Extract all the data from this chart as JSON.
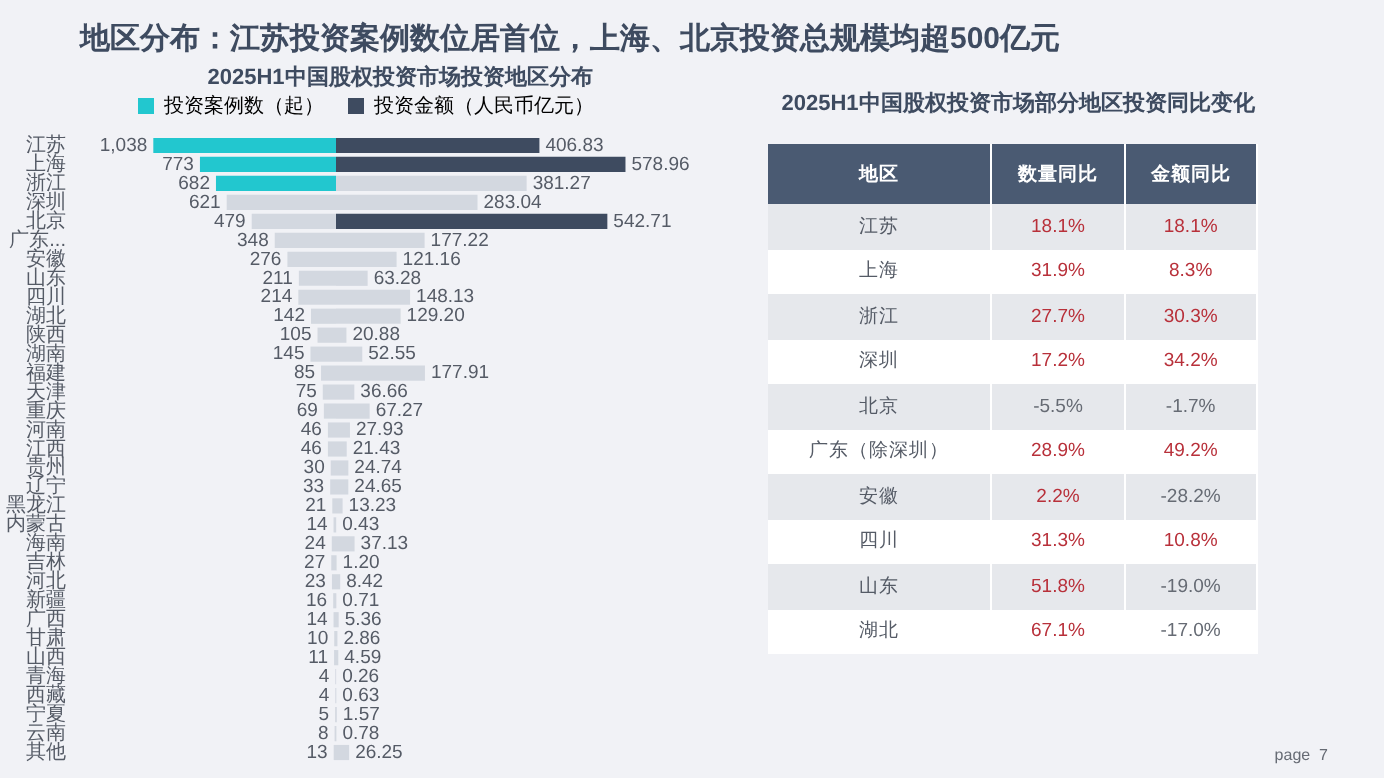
{
  "chart_data": [
    {
      "type": "bar",
      "orientation": "horizontal",
      "title": "地区分布：江苏投资案例数位居首位，上海、北京投资总规模均超500亿元",
      "subtitle": "2025H1中国股权投资市场投资地区分布",
      "legend": "top",
      "tick_labels": "y",
      "categories": [
        "江苏",
        "上海",
        "浙江",
        "深圳",
        "北京",
        "广东...",
        "安徽",
        "山东",
        "四川",
        "湖北",
        "陕西",
        "湖南",
        "福建",
        "天津",
        "重庆",
        "河南",
        "江西",
        "贵州",
        "辽宁",
        "黑龙江",
        "内蒙古",
        "海南",
        "吉林",
        "河北",
        "新疆",
        "广西",
        "甘肃",
        "山西",
        "青海",
        "西藏",
        "宁夏",
        "云南",
        "其他"
      ],
      "series": [
        {
          "name": "投资案例数（起）",
          "values": [
            1038,
            773,
            682,
            621,
            479,
            348,
            276,
            211,
            214,
            142,
            105,
            145,
            85,
            75,
            69,
            46,
            46,
            30,
            33,
            21,
            14,
            24,
            27,
            23,
            16,
            14,
            10,
            11,
            4,
            4,
            5,
            8,
            13
          ],
          "value_labels": [
            "1,038",
            "773",
            "682",
            "621",
            "479",
            "348",
            "276",
            "211",
            "214",
            "142",
            "105",
            "145",
            "85",
            "75",
            "69",
            "46",
            "46",
            "30",
            "33",
            "21",
            "14",
            "24",
            "27",
            "23",
            "16",
            "14",
            "10",
            "11",
            "4",
            "4",
            "5",
            "8",
            "13"
          ],
          "colors": [
            "#22c7cf",
            "#22c7cf",
            "#22c7cf",
            "#d3d8e0",
            "#d3d8e0",
            "#d3d8e0",
            "#d3d8e0",
            "#d3d8e0",
            "#d3d8e0",
            "#d3d8e0",
            "#d3d8e0",
            "#d3d8e0",
            "#d3d8e0",
            "#d3d8e0",
            "#d3d8e0",
            "#d3d8e0",
            "#d3d8e0",
            "#d3d8e0",
            "#d3d8e0",
            "#d3d8e0",
            "#d3d8e0",
            "#d3d8e0",
            "#d3d8e0",
            "#d3d8e0",
            "#d3d8e0",
            "#d3d8e0",
            "#d3d8e0",
            "#d3d8e0",
            "#d3d8e0",
            "#d3d8e0",
            "#d3d8e0",
            "#d3d8e0",
            "#d3d8e0"
          ]
        }
      ]
    },
    {
      "type": "bar",
      "orientation": "horizontal",
      "legend": "top",
      "tick_labels": false,
      "categories": [
        null,
        null,
        null,
        null,
        null,
        null,
        null,
        null,
        null,
        null,
        null,
        null,
        null,
        null,
        null,
        null,
        null,
        null,
        null,
        null,
        null,
        null,
        null,
        null,
        null,
        null,
        null,
        null,
        null,
        null,
        null,
        null,
        null
      ],
      "series": [
        {
          "name": "投资金额（人民币亿元）",
          "values": [
            406.83,
            578.96,
            381.27,
            283.04,
            542.71,
            177.22,
            121.16,
            63.28,
            148.13,
            129.2,
            20.88,
            52.55,
            177.91,
            36.66,
            67.27,
            27.93,
            21.43,
            24.74,
            24.65,
            13.23,
            0.43,
            37.13,
            1.2,
            8.42,
            0.71,
            5.36,
            2.86,
            4.59,
            0.26,
            0.63,
            1.57,
            0.78,
            26.25
          ],
          "value_labels": [
            "406.83",
            "578.96",
            "381.27",
            "283.04",
            "542.71",
            "177.22",
            "121.16",
            "63.28",
            "148.13",
            "129.20",
            "20.88",
            "52.55",
            "177.91",
            "36.66",
            "67.27",
            "27.93",
            "21.43",
            "24.74",
            "24.65",
            "13.23",
            "0.43",
            "37.13",
            "1.20",
            "8.42",
            "0.71",
            "5.36",
            "2.86",
            "4.59",
            "0.26",
            "0.63",
            "1.57",
            "0.78",
            "26.25"
          ],
          "colors": [
            "#3e4b60",
            "#3e4b60",
            "#d3d8e0",
            "#d3d8e0",
            "#3e4b60",
            "#d3d8e0",
            "#d3d8e0",
            "#d3d8e0",
            "#d3d8e0",
            "#d3d8e0",
            "#d3d8e0",
            "#d3d8e0",
            "#d3d8e0",
            "#d3d8e0",
            "#d3d8e0",
            "#d3d8e0",
            "#d3d8e0",
            "#d3d8e0",
            "#d3d8e0",
            "#d3d8e0",
            "#d3d8e0",
            "#d3d8e0",
            "#d3d8e0",
            "#d3d8e0",
            "#d3d8e0",
            "#d3d8e0",
            "#d3d8e0",
            "#d3d8e0",
            "#d3d8e0",
            "#d3d8e0",
            "#d3d8e0",
            "#d3d8e0",
            "#d3d8e0"
          ]
        }
      ]
    },
    {
      "type": "heatmap",
      "title": "2025H1中国股权投资市场部分地区投资同比变化",
      "ylabel": "地区",
      "categories": [
        "数量同比",
        "金额同比"
      ],
      "y_categories": [
        "江苏",
        "上海",
        "浙江",
        "深圳",
        "北京",
        "广东（除深圳）",
        "安徽",
        "四川",
        "山东",
        "湖北"
      ],
      "cells": [
        [
          18.1,
          18.1
        ],
        [
          31.9,
          8.3
        ],
        [
          27.7,
          30.3
        ],
        [
          17.2,
          34.2
        ],
        [
          -5.5,
          -1.7
        ],
        [
          28.9,
          49.2
        ],
        [
          2.2,
          -28.2
        ],
        [
          31.3,
          10.8
        ],
        [
          51.8,
          -19.0
        ],
        [
          67.1,
          -17.0
        ]
      ],
      "cell_labels": [
        [
          "18.1%",
          "18.1%"
        ],
        [
          "31.9%",
          "8.3%"
        ],
        [
          "27.7%",
          "30.3%"
        ],
        [
          "17.2%",
          "34.2%"
        ],
        [
          "-5.5%",
          "-1.7%"
        ],
        [
          "28.9%",
          "49.2%"
        ],
        [
          "2.2%",
          "-28.2%"
        ],
        [
          "31.3%",
          "10.8%"
        ],
        [
          "51.8%",
          "-19.0%"
        ],
        [
          "67.1%",
          "-17.0%"
        ]
      ],
      "annotations": [
        "page  7"
      ]
    }
  ]
}
